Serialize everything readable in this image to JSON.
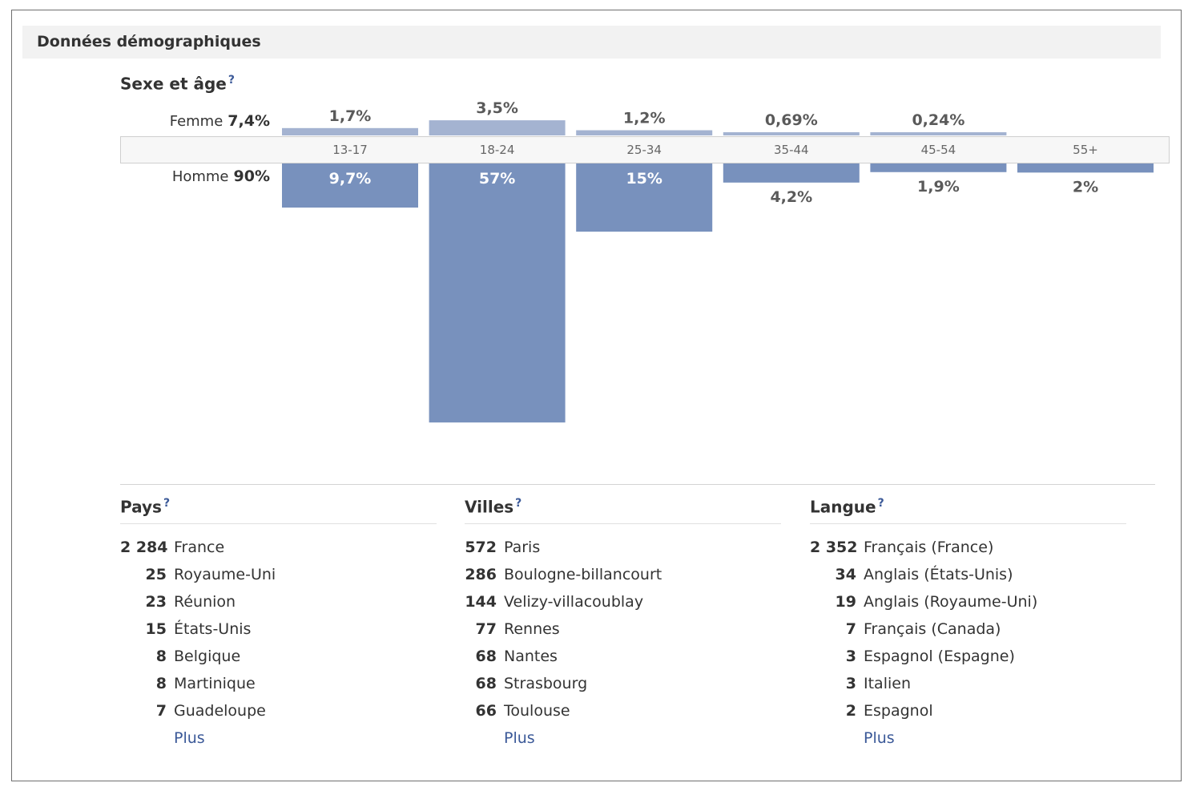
{
  "header": {
    "title": "Données démographiques"
  },
  "section": {
    "title": "Sexe et âge",
    "help": "?"
  },
  "colors": {
    "female_bar": "#a4b3d1",
    "male_bar": "#7891bd",
    "female_label": "#5a5a5a",
    "link": "#3b5998"
  },
  "chart_data": {
    "type": "bar",
    "title": "Sexe et âge",
    "categories": [
      "13-17",
      "18-24",
      "25-34",
      "35-44",
      "45-54",
      "55+"
    ],
    "series": [
      {
        "name": "Femme",
        "total": "7,4%",
        "values": [
          1.7,
          3.5,
          1.2,
          0.69,
          0.24,
          null
        ],
        "labels": [
          "1,7%",
          "3,5%",
          "1,2%",
          "0,69%",
          "0,24%",
          ""
        ]
      },
      {
        "name": "Homme",
        "total": "90%",
        "values": [
          9.7,
          57,
          15,
          4.2,
          1.9,
          2
        ],
        "labels": [
          "9,7%",
          "57%",
          "15%",
          "4,2%",
          "1,9%",
          "2%"
        ]
      }
    ],
    "xlabel": "",
    "ylabel": "",
    "grid": false
  },
  "pays": {
    "title": "Pays",
    "help": "?",
    "more": "Plus",
    "rows": [
      {
        "count": "2 284",
        "name": "France"
      },
      {
        "count": "25",
        "name": "Royaume-Uni"
      },
      {
        "count": "23",
        "name": "Réunion"
      },
      {
        "count": "15",
        "name": "États-Unis"
      },
      {
        "count": "8",
        "name": "Belgique"
      },
      {
        "count": "8",
        "name": "Martinique"
      },
      {
        "count": "7",
        "name": "Guadeloupe"
      }
    ]
  },
  "villes": {
    "title": "Villes",
    "help": "?",
    "more": "Plus",
    "rows": [
      {
        "count": "572",
        "name": "Paris"
      },
      {
        "count": "286",
        "name": "Boulogne-billancourt"
      },
      {
        "count": "144",
        "name": "Velizy-villacoublay"
      },
      {
        "count": "77",
        "name": "Rennes"
      },
      {
        "count": "68",
        "name": "Nantes"
      },
      {
        "count": "68",
        "name": "Strasbourg"
      },
      {
        "count": "66",
        "name": "Toulouse"
      }
    ]
  },
  "langue": {
    "title": "Langue",
    "help": "?",
    "more": "Plus",
    "rows": [
      {
        "count": "2 352",
        "name": "Français (France)"
      },
      {
        "count": "34",
        "name": "Anglais (États-Unis)"
      },
      {
        "count": "19",
        "name": "Anglais (Royaume-Uni)"
      },
      {
        "count": "7",
        "name": "Français (Canada)"
      },
      {
        "count": "3",
        "name": "Espagnol (Espagne)"
      },
      {
        "count": "3",
        "name": "Italien"
      },
      {
        "count": "2",
        "name": "Espagnol"
      }
    ]
  }
}
